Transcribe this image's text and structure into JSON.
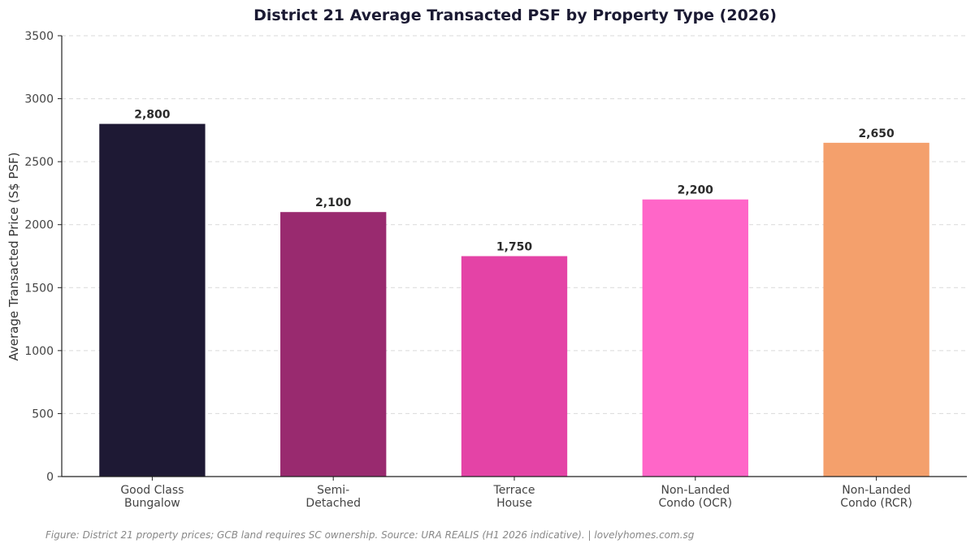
{
  "chart_data": {
    "type": "bar",
    "title": "District 21 Average Transacted PSF by Property Type (2026)",
    "xlabel": "",
    "ylabel": "Average Transacted Price (S$ PSF)",
    "categories": [
      [
        "Good Class",
        "Bungalow"
      ],
      [
        "Semi-",
        "Detached"
      ],
      [
        "Terrace",
        "House"
      ],
      [
        "Non-Landed",
        "Condo (OCR)"
      ],
      [
        "Non-Landed",
        "Condo (RCR)"
      ]
    ],
    "values": [
      2800,
      2100,
      1750,
      2200,
      2650
    ],
    "value_labels": [
      "2,800",
      "2,100",
      "1,750",
      "2,200",
      "2,650"
    ],
    "colors": [
      "#1e1934",
      "#992a6f",
      "#e443a6",
      "#ff66c8",
      "#f4a06c"
    ],
    "ylim": [
      0,
      3500
    ],
    "yticks": [
      0,
      500,
      1000,
      1500,
      2000,
      2500,
      3000,
      3500
    ],
    "grid": true,
    "legend": "none"
  },
  "caption": "Figure: District 21 property prices; GCB land requires SC ownership. Source: URA REALIS (H1 2026 indicative).  |  lovelyhomes.com.sg"
}
